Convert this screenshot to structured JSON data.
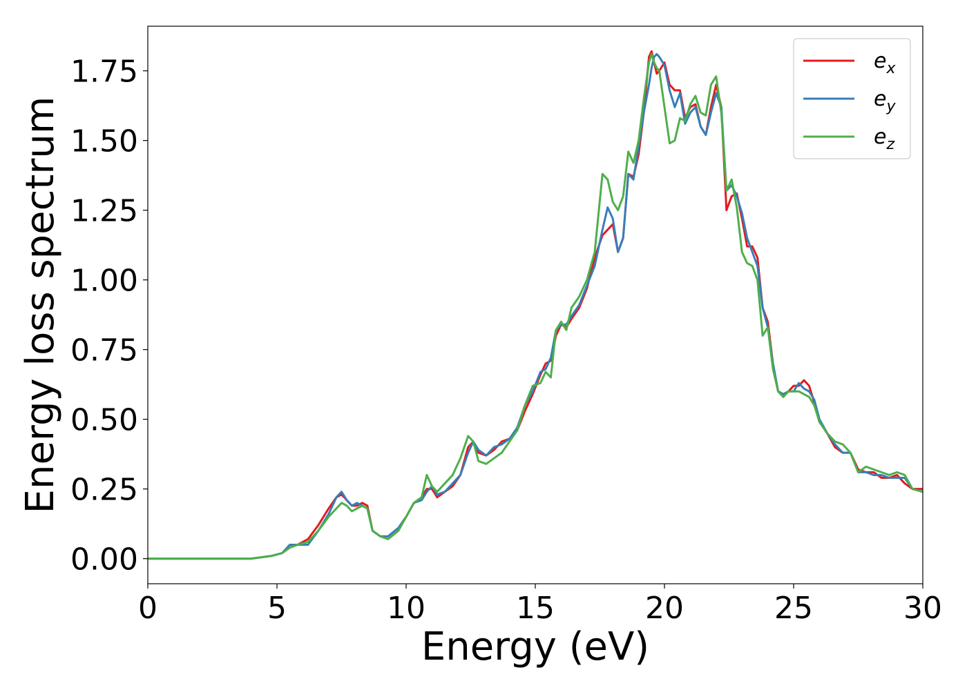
{
  "chart_data": {
    "type": "line",
    "title": "",
    "xlabel": "Energy (eV)",
    "ylabel": "Energy loss spectrum",
    "xlim": [
      0,
      30
    ],
    "ylim": [
      -0.09,
      1.91
    ],
    "xticks": [
      0,
      5,
      10,
      15,
      20,
      25,
      30
    ],
    "xtick_labels": [
      "0",
      "5",
      "10",
      "15",
      "20",
      "25",
      "30"
    ],
    "yticks": [
      0,
      0.25,
      0.5,
      0.75,
      1.0,
      1.25,
      1.5,
      1.75
    ],
    "ytick_labels": [
      "0.00",
      "0.25",
      "0.50",
      "0.75",
      "1.00",
      "1.25",
      "1.50",
      "1.75"
    ],
    "grid": false,
    "legend_position": "top-right",
    "series": [
      {
        "name": "e_x",
        "label_base": "e",
        "label_sub": "x",
        "color": "#e41a1c",
        "x": [
          0,
          1,
          2,
          3,
          4,
          4.8,
          5.2,
          5.5,
          5.8,
          6.2,
          6.6,
          7.0,
          7.3,
          7.5,
          7.7,
          7.9,
          8.1,
          8.3,
          8.5,
          8.7,
          9.0,
          9.3,
          9.7,
          10.0,
          10.3,
          10.6,
          10.8,
          11.0,
          11.2,
          11.5,
          11.8,
          12.1,
          12.4,
          12.6,
          12.8,
          13.1,
          13.4,
          13.7,
          14.0,
          14.3,
          14.6,
          14.9,
          15.2,
          15.4,
          15.6,
          15.8,
          16.0,
          16.2,
          16.4,
          16.7,
          17.0,
          17.3,
          17.6,
          17.8,
          18.0,
          18.2,
          18.4,
          18.6,
          18.8,
          19.0,
          19.2,
          19.4,
          19.5,
          19.6,
          19.7,
          19.8,
          20.0,
          20.2,
          20.4,
          20.6,
          20.8,
          21.0,
          21.2,
          21.4,
          21.6,
          21.8,
          22.0,
          22.2,
          22.4,
          22.6,
          22.8,
          23.0,
          23.2,
          23.4,
          23.6,
          23.8,
          24.0,
          24.2,
          24.4,
          24.6,
          24.8,
          25.0,
          25.2,
          25.4,
          25.6,
          25.8,
          26.0,
          26.3,
          26.6,
          26.9,
          27.2,
          27.5,
          27.8,
          28.1,
          28.4,
          28.7,
          29.0,
          29.3,
          29.6,
          30.0
        ],
        "y": [
          0,
          0,
          0,
          0,
          0,
          0.01,
          0.02,
          0.04,
          0.05,
          0.07,
          0.12,
          0.18,
          0.22,
          0.23,
          0.21,
          0.19,
          0.19,
          0.2,
          0.19,
          0.1,
          0.08,
          0.08,
          0.11,
          0.15,
          0.2,
          0.22,
          0.25,
          0.25,
          0.22,
          0.24,
          0.26,
          0.3,
          0.4,
          0.42,
          0.38,
          0.37,
          0.39,
          0.42,
          0.43,
          0.46,
          0.53,
          0.59,
          0.66,
          0.7,
          0.71,
          0.8,
          0.84,
          0.83,
          0.86,
          0.9,
          0.97,
          1.08,
          1.16,
          1.18,
          1.2,
          1.1,
          1.15,
          1.38,
          1.37,
          1.45,
          1.6,
          1.8,
          1.82,
          1.78,
          1.74,
          1.75,
          1.78,
          1.7,
          1.68,
          1.68,
          1.58,
          1.62,
          1.63,
          1.55,
          1.52,
          1.62,
          1.7,
          1.62,
          1.25,
          1.3,
          1.31,
          1.22,
          1.12,
          1.12,
          1.08,
          0.9,
          0.85,
          0.7,
          0.6,
          0.59,
          0.6,
          0.62,
          0.62,
          0.64,
          0.62,
          0.56,
          0.49,
          0.45,
          0.4,
          0.38,
          0.38,
          0.32,
          0.31,
          0.31,
          0.29,
          0.29,
          0.3,
          0.27,
          0.25,
          0.25
        ]
      },
      {
        "name": "e_y",
        "label_base": "e",
        "label_sub": "y",
        "color": "#377eb8",
        "x": [
          0,
          1,
          2,
          3,
          4,
          4.8,
          5.2,
          5.5,
          5.8,
          6.2,
          6.6,
          7.0,
          7.3,
          7.5,
          7.7,
          7.9,
          8.1,
          8.3,
          8.5,
          8.7,
          9.0,
          9.3,
          9.7,
          10.0,
          10.3,
          10.6,
          10.8,
          11.0,
          11.2,
          11.5,
          11.8,
          12.1,
          12.4,
          12.6,
          12.8,
          13.1,
          13.4,
          13.7,
          14.0,
          14.3,
          14.6,
          14.9,
          15.2,
          15.4,
          15.6,
          15.8,
          16.0,
          16.2,
          16.4,
          16.7,
          17.0,
          17.3,
          17.6,
          17.8,
          18.0,
          18.2,
          18.4,
          18.6,
          18.8,
          19.0,
          19.2,
          19.4,
          19.5,
          19.6,
          19.7,
          19.8,
          20.0,
          20.2,
          20.4,
          20.6,
          20.8,
          21.0,
          21.2,
          21.4,
          21.6,
          21.8,
          22.0,
          22.2,
          22.4,
          22.6,
          22.8,
          23.0,
          23.2,
          23.4,
          23.6,
          23.8,
          24.0,
          24.2,
          24.4,
          24.6,
          24.8,
          25.0,
          25.2,
          25.4,
          25.6,
          25.8,
          26.0,
          26.3,
          26.6,
          26.9,
          27.2,
          27.5,
          27.8,
          28.1,
          28.4,
          28.7,
          29.0,
          29.3,
          29.6,
          30.0
        ],
        "y": [
          0,
          0,
          0,
          0,
          0,
          0.01,
          0.02,
          0.05,
          0.05,
          0.05,
          0.1,
          0.16,
          0.22,
          0.24,
          0.21,
          0.19,
          0.2,
          0.19,
          0.18,
          0.1,
          0.08,
          0.08,
          0.11,
          0.15,
          0.2,
          0.21,
          0.24,
          0.26,
          0.23,
          0.24,
          0.27,
          0.3,
          0.38,
          0.42,
          0.39,
          0.37,
          0.4,
          0.41,
          0.43,
          0.47,
          0.55,
          0.6,
          0.67,
          0.68,
          0.72,
          0.82,
          0.84,
          0.84,
          0.87,
          0.91,
          0.98,
          1.05,
          1.18,
          1.26,
          1.22,
          1.1,
          1.15,
          1.38,
          1.36,
          1.48,
          1.6,
          1.7,
          1.76,
          1.8,
          1.81,
          1.8,
          1.77,
          1.68,
          1.62,
          1.67,
          1.56,
          1.6,
          1.62,
          1.55,
          1.52,
          1.6,
          1.67,
          1.62,
          1.32,
          1.34,
          1.3,
          1.24,
          1.15,
          1.1,
          1.05,
          0.9,
          0.83,
          0.7,
          0.6,
          0.59,
          0.6,
          0.6,
          0.63,
          0.61,
          0.6,
          0.57,
          0.5,
          0.45,
          0.41,
          0.38,
          0.38,
          0.31,
          0.31,
          0.3,
          0.3,
          0.29,
          0.29,
          0.29,
          0.25,
          0.24
        ]
      },
      {
        "name": "e_z",
        "label_base": "e",
        "label_sub": "z",
        "color": "#4daf4a",
        "x": [
          0,
          1,
          2,
          3,
          4,
          4.8,
          5.2,
          5.5,
          5.8,
          6.2,
          6.6,
          7.0,
          7.3,
          7.5,
          7.7,
          7.9,
          8.1,
          8.3,
          8.5,
          8.7,
          9.0,
          9.3,
          9.7,
          10.0,
          10.3,
          10.6,
          10.8,
          11.0,
          11.2,
          11.5,
          11.8,
          12.1,
          12.4,
          12.6,
          12.8,
          13.1,
          13.4,
          13.7,
          14.0,
          14.3,
          14.6,
          14.9,
          15.2,
          15.4,
          15.6,
          15.8,
          16.0,
          16.2,
          16.4,
          16.7,
          17.0,
          17.3,
          17.6,
          17.8,
          18.0,
          18.2,
          18.4,
          18.6,
          18.8,
          19.0,
          19.2,
          19.4,
          19.5,
          19.6,
          19.7,
          19.8,
          20.0,
          20.2,
          20.4,
          20.6,
          20.8,
          21.0,
          21.2,
          21.4,
          21.6,
          21.8,
          22.0,
          22.2,
          22.4,
          22.6,
          22.8,
          23.0,
          23.2,
          23.4,
          23.6,
          23.8,
          24.0,
          24.2,
          24.4,
          24.6,
          24.8,
          25.0,
          25.2,
          25.4,
          25.6,
          25.8,
          26.0,
          26.3,
          26.6,
          26.9,
          27.2,
          27.5,
          27.8,
          28.1,
          28.4,
          28.7,
          29.0,
          29.3,
          29.6,
          30.0
        ],
        "y": [
          0,
          0,
          0,
          0,
          0,
          0.01,
          0.02,
          0.04,
          0.05,
          0.06,
          0.1,
          0.15,
          0.18,
          0.2,
          0.19,
          0.17,
          0.18,
          0.19,
          0.18,
          0.1,
          0.08,
          0.07,
          0.1,
          0.15,
          0.2,
          0.22,
          0.3,
          0.26,
          0.24,
          0.27,
          0.3,
          0.36,
          0.44,
          0.42,
          0.35,
          0.34,
          0.36,
          0.38,
          0.42,
          0.46,
          0.55,
          0.62,
          0.63,
          0.67,
          0.65,
          0.82,
          0.85,
          0.82,
          0.9,
          0.94,
          1.0,
          1.1,
          1.38,
          1.36,
          1.28,
          1.25,
          1.3,
          1.46,
          1.42,
          1.5,
          1.65,
          1.78,
          1.81,
          1.78,
          1.76,
          1.75,
          1.62,
          1.49,
          1.5,
          1.58,
          1.57,
          1.63,
          1.66,
          1.6,
          1.59,
          1.7,
          1.73,
          1.6,
          1.32,
          1.36,
          1.26,
          1.1,
          1.06,
          1.05,
          1.0,
          0.8,
          0.83,
          0.68,
          0.6,
          0.58,
          0.6,
          0.6,
          0.6,
          0.59,
          0.58,
          0.55,
          0.49,
          0.45,
          0.42,
          0.41,
          0.38,
          0.31,
          0.33,
          0.32,
          0.31,
          0.3,
          0.31,
          0.3,
          0.25,
          0.24
        ]
      }
    ]
  }
}
